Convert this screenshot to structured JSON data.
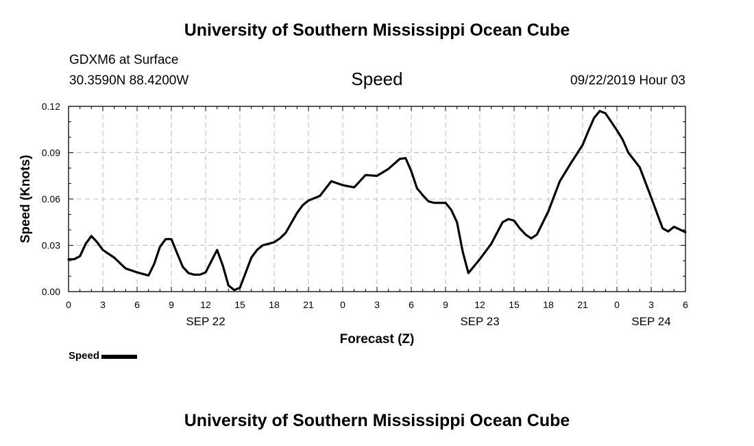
{
  "header": {
    "title": "University of Southern Mississippi Ocean Cube",
    "station_line1": "GDXM6 at Surface",
    "station_line2": "30.3590N 88.4200W",
    "chart_title": "Speed",
    "datetime": "09/22/2019 Hour 03"
  },
  "footer": {
    "title": "University of Southern Mississippi Ocean Cube"
  },
  "legend": {
    "label": "Speed"
  },
  "colors": {
    "line": "#000000",
    "grid": "#bbbbbb",
    "background": "#ffffff"
  },
  "chart_data": {
    "type": "line",
    "title": "Speed",
    "xlabel": "Forecast (Z)",
    "ylabel": "Speed (Knots)",
    "x_unit": "hours since SEP 22 00Z",
    "xlim": [
      0,
      54
    ],
    "ylim": [
      0,
      0.12
    ],
    "yticks": [
      0,
      0.03,
      0.06,
      0.09,
      0.12
    ],
    "ytick_labels": [
      "0.00",
      "0.03",
      "0.06",
      "0.09",
      "0.12"
    ],
    "xticks": [
      0,
      3,
      6,
      9,
      12,
      15,
      18,
      21,
      24,
      27,
      30,
      33,
      36,
      39,
      42,
      45,
      48,
      51,
      54
    ],
    "xtick_labels": [
      "0",
      "3",
      "6",
      "9",
      "12",
      "15",
      "18",
      "21",
      "0",
      "3",
      "6",
      "9",
      "12",
      "15",
      "18",
      "21",
      "0",
      "3",
      "6"
    ],
    "date_labels": [
      {
        "x": 12,
        "label": "SEP 22"
      },
      {
        "x": 36,
        "label": "SEP 23"
      },
      {
        "x": 51,
        "label": "SEP 24"
      }
    ],
    "grid": true,
    "legend_position": "bottom-left",
    "series": [
      {
        "name": "Speed",
        "x": [
          0,
          0.5,
          1,
          1.5,
          2,
          2.5,
          3,
          4,
          5,
          6,
          7,
          7.5,
          8,
          8.5,
          9,
          9.5,
          10,
          10.5,
          11,
          11.5,
          12,
          13,
          13.5,
          14,
          14.5,
          15,
          16,
          16.5,
          17,
          17.5,
          18,
          18.5,
          19,
          20,
          20.5,
          21,
          22,
          23,
          24,
          25,
          26,
          27,
          28,
          29,
          29.5,
          30,
          30.5,
          31,
          31.5,
          32,
          33,
          33.5,
          34,
          34.5,
          35,
          36,
          37,
          37.5,
          38,
          38.5,
          39,
          39.5,
          40,
          40.5,
          41,
          42,
          43,
          44,
          45,
          45.5,
          46,
          46.5,
          47,
          47.5,
          48,
          48.5,
          49,
          50,
          51,
          52,
          52.5,
          53,
          54
        ],
        "y": [
          0.021,
          0.021,
          0.023,
          0.031,
          0.036,
          0.032,
          0.027,
          0.022,
          0.015,
          0.0125,
          0.0105,
          0.018,
          0.029,
          0.034,
          0.034,
          0.025,
          0.016,
          0.012,
          0.011,
          0.011,
          0.0125,
          0.027,
          0.017,
          0.004,
          0.001,
          0.0025,
          0.022,
          0.027,
          0.03,
          0.031,
          0.032,
          0.0345,
          0.038,
          0.051,
          0.056,
          0.059,
          0.062,
          0.0715,
          0.069,
          0.0675,
          0.0755,
          0.075,
          0.0795,
          0.086,
          0.0865,
          0.078,
          0.067,
          0.0625,
          0.0585,
          0.0575,
          0.0575,
          0.053,
          0.045,
          0.026,
          0.012,
          0.021,
          0.031,
          0.038,
          0.045,
          0.047,
          0.046,
          0.041,
          0.037,
          0.0345,
          0.037,
          0.052,
          0.0715,
          0.0835,
          0.095,
          0.104,
          0.1125,
          0.117,
          0.1155,
          0.11,
          0.1045,
          0.0985,
          0.09,
          0.0805,
          0.061,
          0.041,
          0.039,
          0.042,
          0.0385
        ]
      }
    ]
  }
}
